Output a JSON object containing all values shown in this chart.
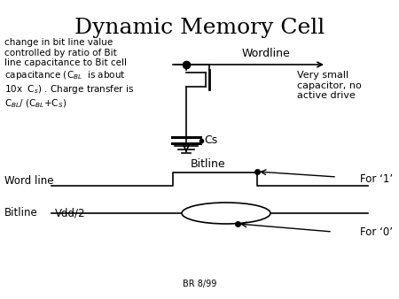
{
  "title": "Dynamic Memory Cell",
  "title_fontsize": 18,
  "background_color": "#ffffff",
  "text_color": "#000000",
  "line_color": "#000000",
  "wordline_label": "Wordline",
  "bitline_label": "Bitline",
  "cs_label": "Cs",
  "very_small_text": "Very small\ncapacitor, no\nactive drive",
  "word_line_label": "Word line",
  "bitline2_label": "Bitline",
  "vdd2_label": "Vdd/2",
  "for1_label": "For ‘1’",
  "for0_label": "For ‘0’",
  "footer": "BR 8/99"
}
